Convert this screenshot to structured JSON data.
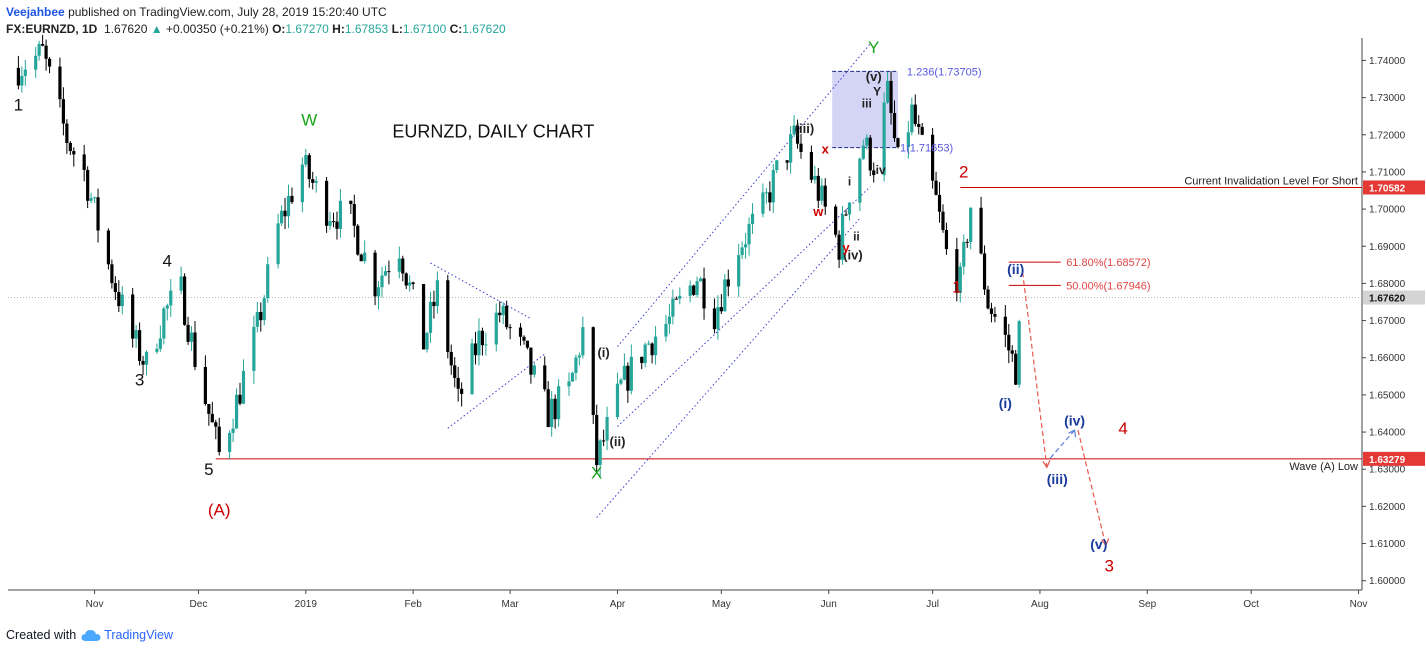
{
  "header": {
    "author": "Veejahbee",
    "published": "published on TradingView.com, July 28, 2019 15:20:40 UTC",
    "symbol": "FX:EURNZD, 1D",
    "last": "1.67620",
    "change": "+0.00350 (+0.21%)",
    "o_label": "O:",
    "o": "1.67270",
    "h_label": "H:",
    "h": "1.67853",
    "l_label": "L:",
    "l": "1.67100",
    "c_label": "C:",
    "c": "1.67620"
  },
  "footer": {
    "created_with": "Created with",
    "brand": "TradingView"
  },
  "colors": {
    "up": "#26a69a",
    "down": "#000000",
    "red": "#cc0000",
    "green": "#1aa31a",
    "navy": "#1a3a9c",
    "blue": "#4a5fd6",
    "box": "#c9c9f5",
    "badge": "#ef5350"
  },
  "chart_data": {
    "type": "candlestick",
    "title": "EURNZD, DAILY CHART",
    "y_ticks": [
      "1.74000",
      "1.73000",
      "1.72000",
      "1.71000",
      "1.70000",
      "1.69000",
      "1.68000",
      "1.67000",
      "1.66000",
      "1.65000",
      "1.64000",
      "1.63000",
      "1.62000",
      "1.61000",
      "1.60000"
    ],
    "y_tick_values": [
      1.74,
      1.73,
      1.72,
      1.71,
      1.7,
      1.69,
      1.68,
      1.67,
      1.66,
      1.65,
      1.64,
      1.63,
      1.62,
      1.61,
      1.6
    ],
    "ylim": [
      1.5975,
      1.7455
    ],
    "x_ticks": [
      {
        "label": "Nov",
        "date": "2018-11-01"
      },
      {
        "label": "Dec",
        "date": "2018-12-01"
      },
      {
        "label": "2019",
        "date": "2019-01-01"
      },
      {
        "label": "Feb",
        "date": "2019-02-01"
      },
      {
        "label": "Mar",
        "date": "2019-03-01"
      },
      {
        "label": "Apr",
        "date": "2019-04-01"
      },
      {
        "label": "May",
        "date": "2019-05-01"
      },
      {
        "label": "Jun",
        "date": "2019-06-01"
      },
      {
        "label": "Jul",
        "date": "2019-07-01"
      },
      {
        "label": "Aug",
        "date": "2019-08-01"
      },
      {
        "label": "Sep",
        "date": "2019-09-01"
      },
      {
        "label": "Oct",
        "date": "2019-10-01"
      },
      {
        "label": "Nov",
        "date": "2019-11-01"
      }
    ],
    "xlim": [
      "2018-10-07",
      "2019-11-02"
    ],
    "price_badges": [
      {
        "value": 1.70582,
        "label": "1.70582"
      },
      {
        "value": 1.6762,
        "label": "1.67620"
      },
      {
        "value": 1.63279,
        "label": "1.63279"
      }
    ],
    "keypoints": [
      [
        "2018-10-10",
        1.738
      ],
      [
        "2018-10-17",
        1.742
      ],
      [
        "2018-10-24",
        1.719
      ],
      [
        "2018-10-29",
        1.71
      ],
      [
        "2018-11-05",
        1.685
      ],
      [
        "2018-11-12",
        1.665
      ],
      [
        "2018-11-16",
        1.658
      ],
      [
        "2018-11-21",
        1.672
      ],
      [
        "2018-11-26",
        1.678
      ],
      [
        "2018-11-30",
        1.66
      ],
      [
        "2018-12-04",
        1.645
      ],
      [
        "2018-12-07",
        1.634
      ],
      [
        "2018-12-12",
        1.648
      ],
      [
        "2018-12-18",
        1.668
      ],
      [
        "2018-12-24",
        1.695
      ],
      [
        "2018-12-31",
        1.712
      ],
      [
        "2019-01-07",
        1.7
      ],
      [
        "2019-01-14",
        1.697
      ],
      [
        "2019-01-21",
        1.68
      ],
      [
        "2019-01-28",
        1.69
      ],
      [
        "2019-02-04",
        1.664
      ],
      [
        "2019-02-08",
        1.678
      ],
      [
        "2019-02-14",
        1.648
      ],
      [
        "2019-02-20",
        1.665
      ],
      [
        "2019-02-26",
        1.672
      ],
      [
        "2019-03-05",
        1.661
      ],
      [
        "2019-03-12",
        1.645
      ],
      [
        "2019-03-18",
        1.651
      ],
      [
        "2019-03-22",
        1.667
      ],
      [
        "2019-03-26",
        1.632
      ],
      [
        "2019-04-02",
        1.652
      ],
      [
        "2019-04-09",
        1.663
      ],
      [
        "2019-04-16",
        1.67
      ],
      [
        "2019-04-24",
        1.682
      ],
      [
        "2019-04-29",
        1.672
      ],
      [
        "2019-05-06",
        1.69
      ],
      [
        "2019-05-13",
        1.7
      ],
      [
        "2019-05-17",
        1.71
      ],
      [
        "2019-05-22",
        1.719
      ],
      [
        "2019-05-28",
        1.707
      ],
      [
        "2019-06-04",
        1.69
      ],
      [
        "2019-06-07",
        1.705
      ],
      [
        "2019-06-11",
        1.718
      ],
      [
        "2019-06-14",
        1.712
      ],
      [
        "2019-06-18",
        1.731
      ],
      [
        "2019-06-21",
        1.712
      ],
      [
        "2019-06-25",
        1.726
      ],
      [
        "2019-07-02",
        1.702
      ],
      [
        "2019-07-05",
        1.688
      ],
      [
        "2019-07-09",
        1.68
      ],
      [
        "2019-07-12",
        1.701
      ],
      [
        "2019-07-17",
        1.675
      ],
      [
        "2019-07-22",
        1.665
      ],
      [
        "2019-07-25",
        1.657
      ],
      [
        "2019-07-27",
        1.6762
      ]
    ],
    "wave_labels": {
      "l1": "1",
      "l3": "3",
      "l4": "4",
      "l5": "5",
      "lA": "(A)",
      "lW": "W",
      "lX": "X",
      "lY": "Y",
      "li_a": "(i)",
      "lii_a": "(ii)",
      "liii_a": "(iii)",
      "liv_a": "(iv)",
      "lv_a": "(v)",
      "lx": "x",
      "lw": "w",
      "ly": "y",
      "li": "i",
      "lii": "ii",
      "liii": "iii",
      "liv": "iv",
      "lY2": "Y",
      "r1": "1",
      "r2": "2",
      "r3": "3",
      "r4": "4",
      "bi": "(i)",
      "bii": "(ii)",
      "biii": "(iii)",
      "biv": "(iv)",
      "bv": "(v)"
    },
    "annotations": {
      "fib_1236": "1.236(1.73705)",
      "fib_1": "1(1.71653)",
      "fib_618": "61.80%(1.68572)",
      "fib_50": "50.00%(1.67946)",
      "invalidation": "Current Invalidation Level For Short",
      "wave_a_low": "Wave (A) Low"
    }
  }
}
